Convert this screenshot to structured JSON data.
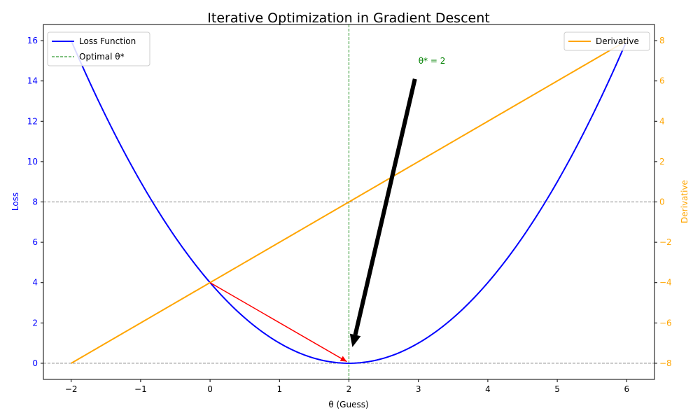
{
  "chart_data": {
    "type": "line",
    "title": "Iterative Optimization in Gradient Descent",
    "xlabel": "θ (Guess)",
    "ylabel_left": "Loss",
    "ylabel_right": "Derivative",
    "xlim": [
      -2.4,
      6.4
    ],
    "ylim_left": [
      -0.8,
      16.8
    ],
    "ylim_right": [
      -8.8,
      8.8
    ],
    "x_ticks": [
      -2,
      -1,
      0,
      1,
      2,
      3,
      4,
      5,
      6
    ],
    "x_tick_labels": [
      "−2",
      "−1",
      "0",
      "1",
      "2",
      "3",
      "4",
      "5",
      "6"
    ],
    "y_left_ticks": [
      0,
      2,
      4,
      6,
      8,
      10,
      12,
      14,
      16
    ],
    "y_left_tick_labels": [
      "0",
      "2",
      "4",
      "6",
      "8",
      "10",
      "12",
      "14",
      "16"
    ],
    "y_right_ticks": [
      -8,
      -6,
      -4,
      -2,
      0,
      2,
      4,
      6,
      8
    ],
    "y_right_tick_labels": [
      "−8",
      "−6",
      "−4",
      "−2",
      "0",
      "2",
      "4",
      "6",
      "8"
    ],
    "series": [
      {
        "name": "Loss Function",
        "axis": "left",
        "color": "#0000ff",
        "function": "(x-2)^2",
        "x_range": [
          -2,
          6
        ]
      },
      {
        "name": "Derivative",
        "axis": "right",
        "color": "#ffa500",
        "function": "2*(x-2)",
        "x_range": [
          -2,
          6
        ]
      }
    ],
    "reference_lines": [
      {
        "name": "Optimal θ*",
        "orientation": "vertical",
        "x": 2,
        "color": "#008000",
        "style": "dashed"
      },
      {
        "orientation": "horizontal",
        "axis": "left",
        "y": 0,
        "color": "#808080",
        "style": "dashed"
      },
      {
        "orientation": "horizontal",
        "axis": "left",
        "y": 8,
        "color": "#808080",
        "style": "dashed"
      }
    ],
    "annotations": [
      {
        "text": "θ* = 2",
        "color": "#008000",
        "x": 3,
        "y": 15
      },
      {
        "type": "arrow",
        "color": "#000000",
        "from": [
          2.95,
          14.1
        ],
        "to": [
          2.05,
          0.8
        ]
      },
      {
        "type": "arrow",
        "color": "#ff0000",
        "from": [
          0,
          4
        ],
        "to": [
          1.97,
          0.08
        ]
      }
    ],
    "legend_left": {
      "position": "upper-left",
      "entries": [
        "Loss Function",
        "Optimal θ*"
      ]
    },
    "legend_right": {
      "position": "upper-right",
      "entries": [
        "Derivative"
      ]
    },
    "colors": {
      "left_axis": "#0000ff",
      "right_axis": "#ffa500"
    },
    "grid": false
  }
}
